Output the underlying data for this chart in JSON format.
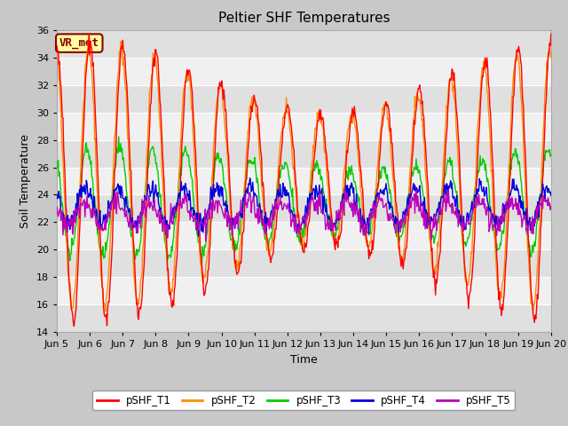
{
  "title": "Peltier SHF Temperatures",
  "ylabel": "Soil Temperature",
  "xlabel": "Time",
  "ylim": [
    14,
    36
  ],
  "annotation": "VR_met",
  "fig_bg_color": "#c8c8c8",
  "plot_bg_color": "#e8e8e8",
  "band_colors": [
    "#e0e0e0",
    "#f0f0f0"
  ],
  "grid_color": "#ffffff",
  "series": {
    "pSHF_T1": {
      "color": "#ff0000"
    },
    "pSHF_T2": {
      "color": "#ff8c00"
    },
    "pSHF_T3": {
      "color": "#00cc00"
    },
    "pSHF_T4": {
      "color": "#0000dd"
    },
    "pSHF_T5": {
      "color": "#bb00bb"
    }
  },
  "xtick_labels": [
    "Jun 5",
    "Jun 6",
    "Jun 7",
    "Jun 8",
    "Jun 9",
    "Jun 10",
    "Jun 11",
    "Jun 12",
    "Jun 13",
    "Jun 14",
    "Jun 15",
    "Jun 16",
    "Jun 17",
    "Jun 18",
    "Jun 19",
    "Jun 20"
  ],
  "yticks": [
    14,
    16,
    18,
    20,
    22,
    24,
    26,
    28,
    30,
    32,
    34,
    36
  ],
  "title_fontsize": 11,
  "axis_fontsize": 9,
  "tick_fontsize": 8,
  "days": 15,
  "pts_per_day": 48,
  "seed": 12
}
